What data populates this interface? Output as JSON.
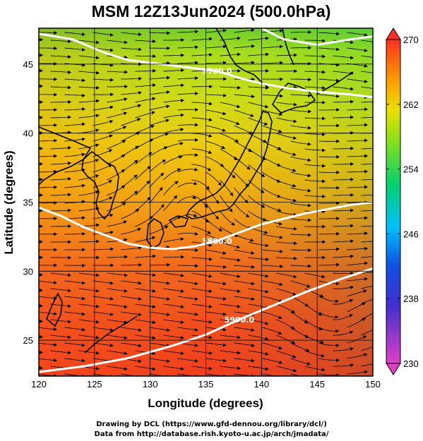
{
  "figure": {
    "title": "MSM 12Z13Jun2024 (500.0hPa)",
    "xlabel": "Longitude (degrees)",
    "ylabel": "Latitude  (degrees)",
    "credit_line1": "Drawing by DCL (https://www.gfd-dennou.org/library/dcl/)",
    "credit_line2": "Data from http://database.rish.kyoto-u.ac.jp/arch/jmadata/"
  },
  "chart_data": {
    "type": "heatmap",
    "title": "MSM 12Z13Jun2024 (500.0hPa)",
    "xlabel": "Longitude (degrees)",
    "ylabel": "Latitude  (degrees)",
    "xlim": [
      120,
      150
    ],
    "ylim": [
      22.4,
      47.6
    ],
    "xticks": [
      120,
      125,
      130,
      135,
      140,
      145,
      150
    ],
    "yticks": [
      25,
      30,
      35,
      40,
      45
    ],
    "grid": true,
    "colorbar": {
      "min": 230,
      "max": 270,
      "ticks": [
        230,
        238,
        246,
        254,
        262,
        270
      ],
      "colors": [
        "#e040c8",
        "#2020d0",
        "#00c8ff",
        "#00d060",
        "#e8e000",
        "#ff9000",
        "#ff3020"
      ]
    },
    "contours": [
      {
        "label": "5700.0",
        "points": [
          [
            120,
            47.2
          ],
          [
            123,
            46.8
          ],
          [
            126,
            45.8
          ],
          [
            128,
            45.3
          ],
          [
            131,
            45.0
          ],
          [
            133,
            44.8
          ],
          [
            136,
            44.5
          ],
          [
            138,
            44.0
          ],
          [
            140,
            43.6
          ],
          [
            142,
            43.3
          ],
          [
            145,
            43.0
          ],
          [
            148,
            42.8
          ],
          [
            150,
            42.6
          ]
        ]
      },
      {
        "label": "5800.0",
        "points": [
          [
            120,
            34.6
          ],
          [
            122,
            34.0
          ],
          [
            124,
            33.2
          ],
          [
            126,
            32.6
          ],
          [
            128,
            32.0
          ],
          [
            130,
            31.7
          ],
          [
            132,
            31.6
          ],
          [
            134,
            31.8
          ],
          [
            136,
            32.2
          ],
          [
            138,
            32.8
          ],
          [
            140,
            33.4
          ],
          [
            142,
            33.8
          ],
          [
            144,
            34.2
          ],
          [
            146,
            34.5
          ],
          [
            148,
            34.8
          ],
          [
            150,
            35.0
          ]
        ]
      },
      {
        "label": "5900.0",
        "points": [
          [
            120,
            22.7
          ],
          [
            124,
            23.1
          ],
          [
            128,
            23.7
          ],
          [
            132,
            24.6
          ],
          [
            135,
            25.4
          ],
          [
            138,
            26.5
          ],
          [
            141,
            27.5
          ],
          [
            144,
            28.5
          ],
          [
            147,
            29.4
          ],
          [
            150,
            30.2
          ]
        ]
      },
      {
        "label": "",
        "points": [
          [
            140,
            47.6
          ],
          [
            142,
            46.8
          ],
          [
            145,
            46.4
          ],
          [
            148,
            46.8
          ],
          [
            150,
            47.0
          ]
        ]
      }
    ],
    "colorbar_levels": [
      {
        "lat": 47.6,
        "value": 264
      },
      {
        "lat": 45,
        "value": 258
      },
      {
        "lat": 42,
        "value": 260
      },
      {
        "lat": 38,
        "value": 262
      },
      {
        "lat": 35,
        "value": 264
      },
      {
        "lat": 32,
        "value": 266
      },
      {
        "lat": 28,
        "value": 268
      },
      {
        "lat": 22.4,
        "value": 268
      }
    ]
  }
}
